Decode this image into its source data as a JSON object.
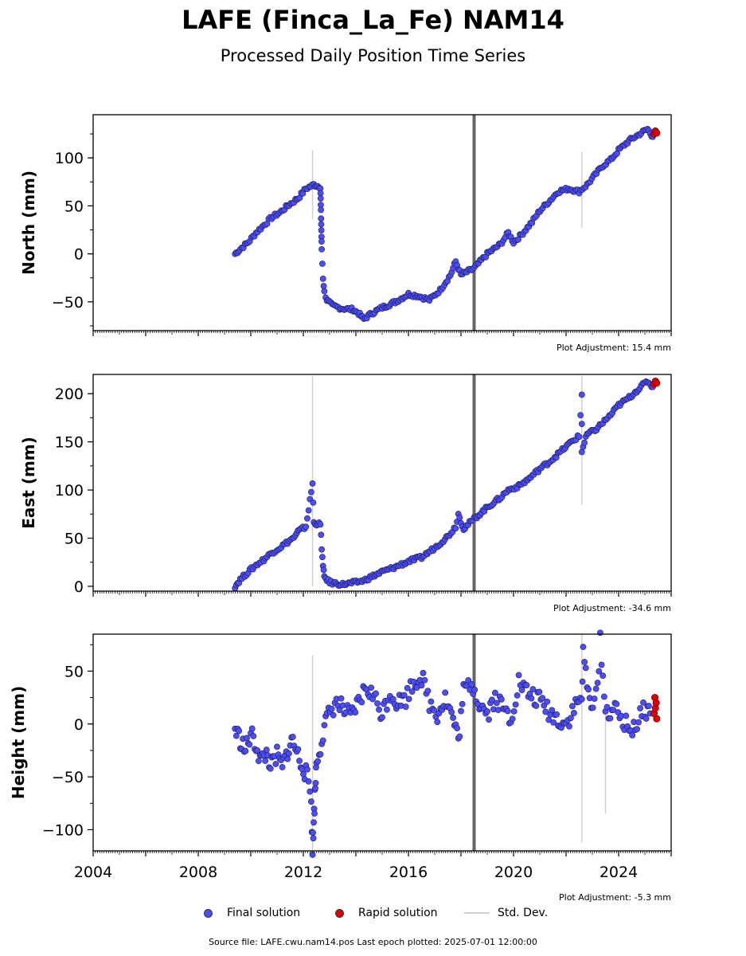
{
  "title": "LAFE (Finca_La_Fe) NAM14",
  "subtitle": "Processed Daily Position Time Series",
  "footer": "Source file: LAFE.cwu.nam14.pos  Last epoch plotted: 2025-07-01 12:00:00",
  "legend": {
    "final": "Final solution",
    "rapid": "Rapid solution",
    "std": "Std. Dev."
  },
  "colors": {
    "final": "#4d4dff",
    "rapid": "#e00000",
    "std": "#cfcfcf",
    "gap_bar": "#666666"
  },
  "chart_data": [
    {
      "type": "scatter",
      "ylabel": "North (mm)",
      "adjustment": "Plot Adjustment: 15.4 mm",
      "ylim": [
        -80,
        145
      ],
      "yticks": [
        -50,
        0,
        50,
        100
      ],
      "xlim": [
        2004,
        2026
      ],
      "xticks": [
        2004,
        2008,
        2012,
        2016,
        2020,
        2024
      ],
      "gap_marker_x": 2018.5,
      "final_points": [
        [
          2009.4,
          0
        ],
        [
          2009.6,
          5
        ],
        [
          2009.9,
          12
        ],
        [
          2010.2,
          22
        ],
        [
          2010.5,
          30
        ],
        [
          2010.8,
          38
        ],
        [
          2011.1,
          43
        ],
        [
          2011.4,
          50
        ],
        [
          2011.7,
          56
        ],
        [
          2011.8,
          58
        ],
        [
          2012.1,
          68
        ],
        [
          2012.4,
          72
        ],
        [
          2012.65,
          70
        ],
        [
          2012.7,
          5
        ],
        [
          2012.75,
          -25
        ],
        [
          2012.8,
          -40
        ],
        [
          2012.9,
          -48
        ],
        [
          2013.1,
          -54
        ],
        [
          2013.5,
          -57
        ],
        [
          2013.9,
          -58
        ],
        [
          2014.1,
          -62
        ],
        [
          2014.3,
          -68
        ],
        [
          2014.6,
          -62
        ],
        [
          2015.0,
          -56
        ],
        [
          2015.5,
          -50
        ],
        [
          2016.0,
          -42
        ],
        [
          2016.4,
          -44
        ],
        [
          2016.8,
          -48
        ],
        [
          2017.2,
          -38
        ],
        [
          2017.6,
          -22
        ],
        [
          2017.8,
          -8
        ],
        [
          2018.0,
          -22
        ],
        [
          2018.5,
          -15
        ],
        [
          2019.0,
          0
        ],
        [
          2019.5,
          10
        ],
        [
          2019.8,
          22
        ],
        [
          2020.0,
          12
        ],
        [
          2020.3,
          20
        ],
        [
          2020.7,
          33
        ],
        [
          2021.0,
          45
        ],
        [
          2021.4,
          56
        ],
        [
          2021.7,
          65
        ],
        [
          2022.1,
          68
        ],
        [
          2022.5,
          65
        ],
        [
          2022.8,
          72
        ],
        [
          2023.1,
          82
        ],
        [
          2023.4,
          92
        ],
        [
          2023.7,
          98
        ],
        [
          2024.0,
          108
        ],
        [
          2024.4,
          118
        ],
        [
          2024.8,
          125
        ],
        [
          2025.1,
          130
        ],
        [
          2025.3,
          122
        ]
      ],
      "rapid_points": [
        [
          2025.35,
          125
        ],
        [
          2025.4,
          128
        ],
        [
          2025.45,
          126
        ]
      ],
      "std_spikes": [
        [
          2012.35,
          36,
          108
        ],
        [
          2022.6,
          28,
          106
        ]
      ]
    },
    {
      "type": "scatter",
      "ylabel": "East (mm)",
      "adjustment": "Plot Adjustment: -34.6 mm",
      "ylim": [
        -5,
        220
      ],
      "yticks": [
        0,
        50,
        100,
        150,
        200
      ],
      "xlim": [
        2004,
        2026
      ],
      "xticks": [
        2004,
        2008,
        2012,
        2016,
        2020,
        2024
      ],
      "gap_marker_x": 2018.5,
      "final_points": [
        [
          2009.4,
          0
        ],
        [
          2009.6,
          7
        ],
        [
          2009.9,
          15
        ],
        [
          2010.2,
          22
        ],
        [
          2010.5,
          28
        ],
        [
          2010.8,
          35
        ],
        [
          2011.1,
          40
        ],
        [
          2011.4,
          46
        ],
        [
          2011.7,
          52
        ],
        [
          2011.8,
          57
        ],
        [
          2012.1,
          62
        ],
        [
          2012.35,
          107
        ],
        [
          2012.4,
          66
        ],
        [
          2012.65,
          64
        ],
        [
          2012.7,
          40
        ],
        [
          2012.75,
          20
        ],
        [
          2012.8,
          10
        ],
        [
          2013.0,
          4
        ],
        [
          2013.5,
          2
        ],
        [
          2014.0,
          4
        ],
        [
          2014.3,
          6
        ],
        [
          2014.6,
          10
        ],
        [
          2015.0,
          15
        ],
        [
          2015.5,
          20
        ],
        [
          2016.0,
          26
        ],
        [
          2016.5,
          30
        ],
        [
          2017.0,
          40
        ],
        [
          2017.5,
          52
        ],
        [
          2017.8,
          62
        ],
        [
          2017.9,
          75
        ],
        [
          2018.1,
          60
        ],
        [
          2018.5,
          70
        ],
        [
          2019.0,
          82
        ],
        [
          2019.5,
          92
        ],
        [
          2019.8,
          100
        ],
        [
          2020.2,
          104
        ],
        [
          2020.6,
          112
        ],
        [
          2021.0,
          122
        ],
        [
          2021.4,
          130
        ],
        [
          2021.8,
          140
        ],
        [
          2022.2,
          150
        ],
        [
          2022.5,
          156
        ],
        [
          2022.6,
          199
        ],
        [
          2022.6,
          140
        ],
        [
          2022.8,
          158
        ],
        [
          2023.1,
          162
        ],
        [
          2023.4,
          170
        ],
        [
          2023.7,
          178
        ],
        [
          2024.0,
          188
        ],
        [
          2024.4,
          196
        ],
        [
          2024.8,
          206
        ],
        [
          2025.1,
          213
        ],
        [
          2025.3,
          207
        ]
      ],
      "rapid_points": [
        [
          2025.35,
          210
        ],
        [
          2025.4,
          213
        ],
        [
          2025.45,
          211
        ]
      ],
      "std_spikes": [
        [
          2012.35,
          0,
          218
        ],
        [
          2022.6,
          85,
          218
        ]
      ]
    },
    {
      "type": "scatter",
      "ylabel": "Height (mm)",
      "adjustment": "Plot Adjustment: -5.3 mm",
      "ylim": [
        -120,
        85
      ],
      "yticks": [
        -100,
        -50,
        0,
        50
      ],
      "xlim": [
        2004,
        2026
      ],
      "xticks": [
        2004,
        2008,
        2012,
        2016,
        2020,
        2024
      ],
      "xticklabels": [
        "2004",
        "2008",
        "2012",
        "2016",
        "2020",
        "2024"
      ],
      "gap_marker_x": 2018.5,
      "final_points": [
        [
          2009.4,
          -5
        ],
        [
          2009.6,
          -15
        ],
        [
          2009.8,
          -25
        ],
        [
          2010.0,
          -10
        ],
        [
          2010.2,
          -20
        ],
        [
          2010.4,
          -35
        ],
        [
          2010.6,
          -28
        ],
        [
          2010.8,
          -40
        ],
        [
          2011.0,
          -30
        ],
        [
          2011.2,
          -42
        ],
        [
          2011.4,
          -25
        ],
        [
          2011.6,
          -15
        ],
        [
          2011.8,
          -30
        ],
        [
          2012.0,
          -40
        ],
        [
          2012.2,
          -55
        ],
        [
          2012.3,
          -72
        ],
        [
          2012.35,
          -118
        ],
        [
          2012.5,
          -35
        ],
        [
          2012.7,
          -15
        ],
        [
          2012.9,
          5
        ],
        [
          2013.2,
          20
        ],
        [
          2013.5,
          15
        ],
        [
          2013.8,
          5
        ],
        [
          2014.1,
          20
        ],
        [
          2014.4,
          35
        ],
        [
          2014.7,
          25
        ],
        [
          2015.0,
          10
        ],
        [
          2015.3,
          30
        ],
        [
          2015.6,
          20
        ],
        [
          2015.9,
          25
        ],
        [
          2016.2,
          40
        ],
        [
          2016.5,
          45
        ],
        [
          2016.8,
          20
        ],
        [
          2017.1,
          10
        ],
        [
          2017.4,
          25
        ],
        [
          2017.7,
          5
        ],
        [
          2017.9,
          -15
        ],
        [
          2018.1,
          30
        ],
        [
          2018.4,
          40
        ],
        [
          2018.7,
          20
        ],
        [
          2019.0,
          10
        ],
        [
          2019.3,
          25
        ],
        [
          2019.6,
          15
        ],
        [
          2019.9,
          5
        ],
        [
          2020.2,
          40
        ],
        [
          2020.5,
          30
        ],
        [
          2020.8,
          25
        ],
        [
          2021.1,
          20
        ],
        [
          2021.4,
          10
        ],
        [
          2021.7,
          5
        ],
        [
          2022.0,
          0
        ],
        [
          2022.3,
          15
        ],
        [
          2022.6,
          25
        ],
        [
          2022.65,
          65
        ],
        [
          2022.9,
          20
        ],
        [
          2023.2,
          30
        ],
        [
          2023.3,
          82
        ],
        [
          2023.5,
          10
        ],
        [
          2023.8,
          15
        ],
        [
          2024.1,
          5
        ],
        [
          2024.4,
          -5
        ],
        [
          2024.7,
          0
        ],
        [
          2025.0,
          15
        ],
        [
          2025.2,
          10
        ]
      ],
      "rapid_points": [
        [
          2025.35,
          10
        ],
        [
          2025.38,
          25
        ],
        [
          2025.4,
          15
        ],
        [
          2025.43,
          20
        ],
        [
          2025.45,
          5
        ]
      ],
      "std_spikes": [
        [
          2012.35,
          -120,
          65
        ],
        [
          2022.6,
          -112,
          85
        ],
        [
          2023.5,
          -85,
          10
        ]
      ]
    }
  ]
}
